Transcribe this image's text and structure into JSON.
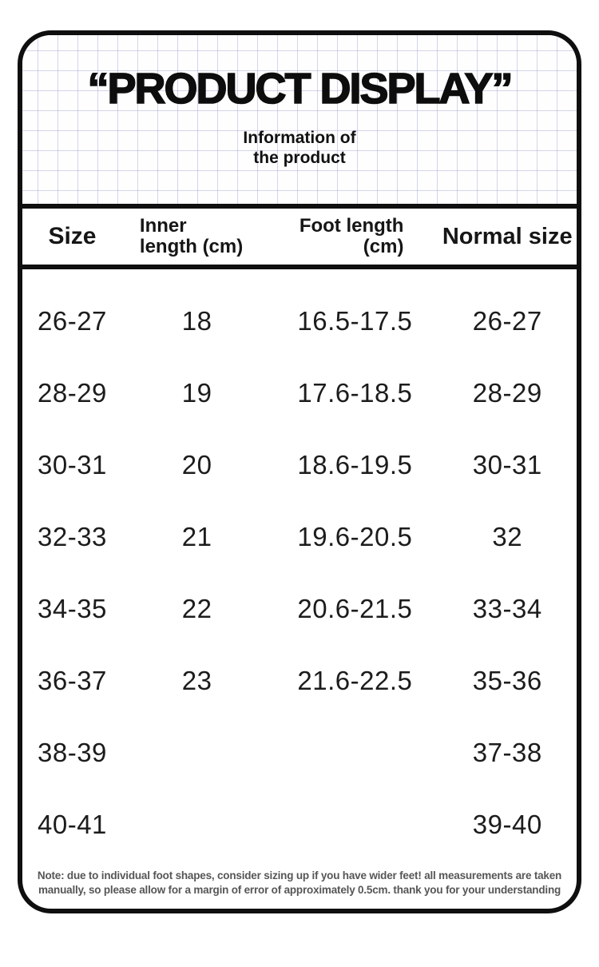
{
  "card": {
    "hero": {
      "title": "“PRODUCT DISPLAY”",
      "subtitle_line1": "Information of",
      "subtitle_line2": "the product"
    },
    "table_header": {
      "size": "Size",
      "inner_line1": "Inner",
      "inner_line2": "length (cm)",
      "foot_line1": "Foot length",
      "foot_line2": "(cm)",
      "normal": "Normal size"
    },
    "note": {
      "line1": "Note: due to individual foot shapes, consider sizing up if you have wider feet! all measurements are taken",
      "line2": "manually, so please allow for a margin of error of approximately 0.5cm. thank you for your understanding"
    }
  },
  "chart_data": {
    "type": "table",
    "title": "“PRODUCT DISPLAY” — Information of the product",
    "columns": [
      "Size",
      "Inner length (cm)",
      "Foot length (cm)",
      "Normal size"
    ],
    "rows": [
      [
        "26-27",
        "18",
        "16.5-17.5",
        "26-27"
      ],
      [
        "28-29",
        "19",
        "17.6-18.5",
        "28-29"
      ],
      [
        "30-31",
        "20",
        "18.6-19.5",
        "30-31"
      ],
      [
        "32-33",
        "21",
        "19.6-20.5",
        "32"
      ],
      [
        "34-35",
        "22",
        "20.6-21.5",
        "33-34"
      ],
      [
        "36-37",
        "23",
        "21.6-22.5",
        "35-36"
      ],
      [
        "38-39",
        "",
        "",
        "37-38"
      ],
      [
        "40-41",
        "",
        "",
        "39-40"
      ]
    ]
  },
  "colors": {
    "border": "#0f0f0f",
    "grid_line": "#c6c8e2",
    "text": "#1a1a1a",
    "note_text": "#565656",
    "background": "#ffffff"
  }
}
